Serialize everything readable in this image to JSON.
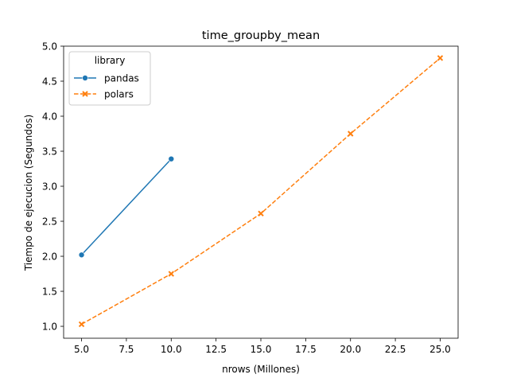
{
  "chart_data": {
    "type": "line",
    "title": "time_groupby_mean",
    "xlabel": "nrows (Millones)",
    "ylabel": "Tiempo de ejecucion (Segundos)",
    "xlim": [
      4.0,
      26.0
    ],
    "ylim": [
      0.83,
      5.0
    ],
    "xticks": [
      5.0,
      7.5,
      10.0,
      12.5,
      15.0,
      17.5,
      20.0,
      22.5,
      25.0
    ],
    "xtick_labels": [
      "5.0",
      "7.5",
      "10.0",
      "12.5",
      "15.0",
      "17.5",
      "20.0",
      "22.5",
      "25.0"
    ],
    "yticks": [
      1.0,
      1.5,
      2.0,
      2.5,
      3.0,
      3.5,
      4.0,
      4.5,
      5.0
    ],
    "ytick_labels": [
      "1.0",
      "1.5",
      "2.0",
      "2.5",
      "3.0",
      "3.5",
      "4.0",
      "4.5",
      "5.0"
    ],
    "grid": false,
    "legend": {
      "title": "library",
      "placement": "top-left"
    },
    "series": [
      {
        "name": "pandas",
        "x": [
          5,
          10
        ],
        "y": [
          2.02,
          3.39
        ],
        "color": "#1f77b4",
        "linestyle": "solid",
        "marker": "circle"
      },
      {
        "name": "polars",
        "x": [
          5,
          10,
          15,
          20,
          25
        ],
        "y": [
          1.03,
          1.75,
          2.61,
          3.75,
          4.83
        ],
        "color": "#ff7f0e",
        "linestyle": "dashed",
        "marker": "x"
      }
    ]
  }
}
